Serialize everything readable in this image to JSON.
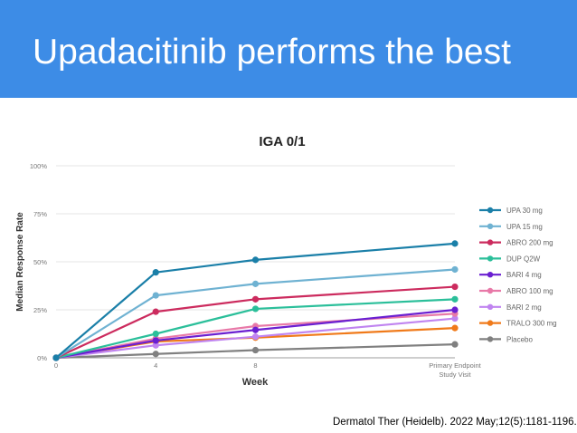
{
  "slide": {
    "title": "Upadacitinib performs the best",
    "citation": "Dermatol Ther (Heidelb). 2022 May;12(5):1181-1196."
  },
  "chart_data": {
    "type": "line",
    "title": "IGA 0/1",
    "xlabel": "Week",
    "ylabel": "Median Response Rate",
    "x": [
      0,
      4,
      8,
      16
    ],
    "x_tick_labels": [
      "0",
      "4",
      "8",
      "Primary Endpoint\nStudy Visit"
    ],
    "y_tick_labels": [
      "0%",
      "25%",
      "50%",
      "75%",
      "100%"
    ],
    "y_ticks": [
      0,
      25,
      50,
      75,
      100
    ],
    "ylim": [
      0,
      100
    ],
    "grid": true,
    "legend_position": "right",
    "series": [
      {
        "name": "UPA 30 mg",
        "color": "#1a7fa8",
        "values": [
          0,
          44.5,
          51,
          59.5
        ]
      },
      {
        "name": "UPA 15 mg",
        "color": "#6fb2d2",
        "values": [
          0,
          32.5,
          38.5,
          46
        ]
      },
      {
        "name": "ABRO 200 mg",
        "color": "#cc2b5e",
        "values": [
          0,
          24,
          30.5,
          37
        ]
      },
      {
        "name": "DUP Q2W",
        "color": "#2bbf9a",
        "values": [
          0,
          12.5,
          25.5,
          30.5
        ]
      },
      {
        "name": "BARI 4 mg",
        "color": "#6a1fd1",
        "values": [
          0,
          9,
          14.5,
          25
        ]
      },
      {
        "name": "ABRO 100 mg",
        "color": "#e879a8",
        "values": [
          0,
          10,
          16.5,
          23
        ]
      },
      {
        "name": "BARI 2 mg",
        "color": "#c084f0",
        "values": [
          0,
          6.5,
          11,
          20.5
        ]
      },
      {
        "name": "TRALO 300 mg",
        "color": "#f07a1a",
        "values": [
          0,
          8.5,
          10.5,
          15.5
        ]
      },
      {
        "name": "Placebo",
        "color": "#808080",
        "values": [
          0,
          2,
          4,
          7
        ]
      }
    ]
  }
}
